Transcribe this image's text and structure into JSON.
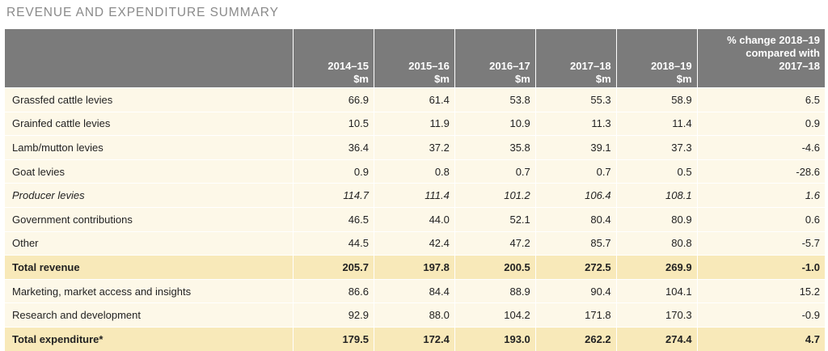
{
  "title": "REVENUE AND EXPENDITURE SUMMARY",
  "columns": [
    {
      "line1": "2014–15",
      "line2": "$m"
    },
    {
      "line1": "2015–16",
      "line2": "$m"
    },
    {
      "line1": "2016–17",
      "line2": "$m"
    },
    {
      "line1": "2017–18",
      "line2": "$m"
    },
    {
      "line1": "2018–19",
      "line2": "$m"
    }
  ],
  "pct_header": [
    "% change 2018–19",
    "compared with",
    "2017–18"
  ],
  "rows": [
    {
      "label": "Grassfed cattle levies",
      "style": "normal",
      "values": [
        "66.9",
        "61.4",
        "53.8",
        "55.3",
        "58.9",
        "6.5"
      ]
    },
    {
      "label": "Grainfed cattle levies",
      "style": "normal",
      "values": [
        "10.5",
        "11.9",
        "10.9",
        "11.3",
        "11.4",
        "0.9"
      ]
    },
    {
      "label": "Lamb/mutton levies",
      "style": "normal",
      "values": [
        "36.4",
        "37.2",
        "35.8",
        "39.1",
        "37.3",
        "-4.6"
      ]
    },
    {
      "label": "Goat levies",
      "style": "normal",
      "values": [
        "0.9",
        "0.8",
        "0.7",
        "0.7",
        "0.5",
        "-28.6"
      ]
    },
    {
      "label": "Producer levies",
      "style": "italic",
      "values": [
        "114.7",
        "111.4",
        "101.2",
        "106.4",
        "108.1",
        "1.6"
      ]
    },
    {
      "label": "Government contributions",
      "style": "normal",
      "values": [
        "46.5",
        "44.0",
        "52.1",
        "80.4",
        "80.9",
        "0.6"
      ]
    },
    {
      "label": "Other",
      "style": "normal",
      "values": [
        "44.5",
        "42.4",
        "47.2",
        "85.7",
        "80.8",
        "-5.7"
      ]
    },
    {
      "label": "Total revenue",
      "style": "total",
      "values": [
        "205.7",
        "197.8",
        "200.5",
        "272.5",
        "269.9",
        "-1.0"
      ]
    },
    {
      "label": "Marketing, market access and insights",
      "style": "normal",
      "values": [
        "86.6",
        "84.4",
        "88.9",
        "90.4",
        "104.1",
        "15.2"
      ]
    },
    {
      "label": "Research and development",
      "style": "normal",
      "values": [
        "92.9",
        "88.0",
        "104.2",
        "171.8",
        "170.3",
        "-0.9"
      ]
    },
    {
      "label": "Total expenditure*",
      "style": "total",
      "values": [
        "179.5",
        "172.4",
        "193.0",
        "262.2",
        "274.4",
        "4.7"
      ]
    }
  ],
  "colors": {
    "header_bg": "#7b7b7b",
    "row_bg": "#fdf8e8",
    "total_bg": "#f8e9b9",
    "title_text": "#8a8a8a"
  }
}
